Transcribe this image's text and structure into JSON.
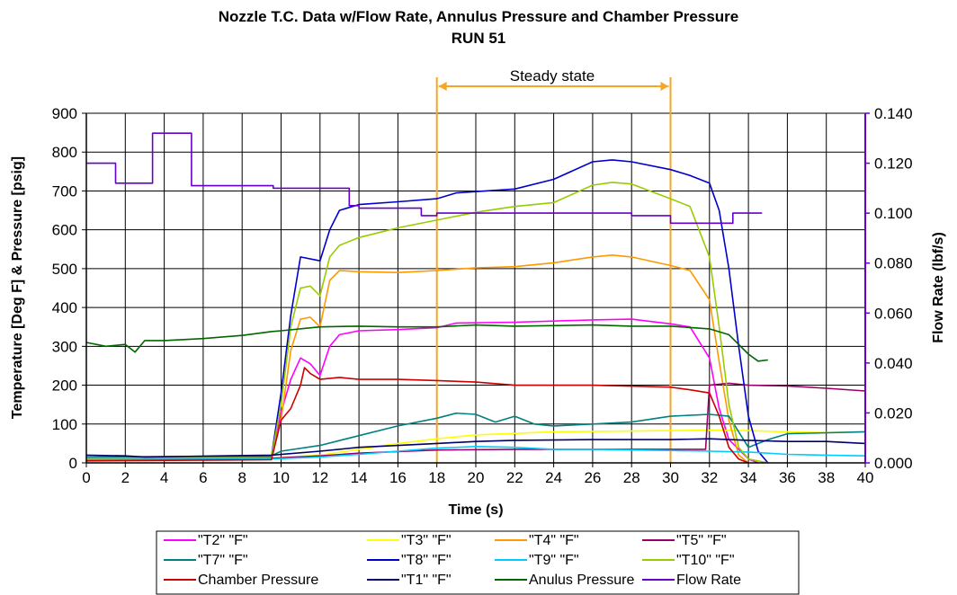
{
  "chart_data": {
    "type": "line",
    "title": "Nozzle T.C. Data w/Flow Rate, Annulus Pressure and Chamber Pressure",
    "subtitle": "RUN 51",
    "xlabel": "Time (s)",
    "ylabel": "Temperature [Deg F] & Pressure [psig]",
    "y2label": "Flow Rate (lbf/s)",
    "xlim": [
      0,
      40
    ],
    "ylim": [
      0,
      900
    ],
    "y2lim": [
      0,
      0.14
    ],
    "xticks": [
      "0",
      "2",
      "4",
      "6",
      "8",
      "10",
      "12",
      "14",
      "16",
      "18",
      "20",
      "22",
      "24",
      "26",
      "28",
      "30",
      "32",
      "34",
      "36",
      "38",
      "40"
    ],
    "yticks": [
      "0",
      "100",
      "200",
      "300",
      "400",
      "500",
      "600",
      "700",
      "800",
      "900"
    ],
    "y2ticks": [
      "0.000",
      "0.020",
      "0.040",
      "0.060",
      "0.080",
      "0.100",
      "0.120",
      "0.140"
    ],
    "grid": true,
    "legend_position": "bottom",
    "annotation": {
      "label": "Steady state",
      "x_start": 18,
      "x_end": 30,
      "color": "#f5a623"
    },
    "series": [
      {
        "name": "\"T2\"  \"F\"",
        "color": "#ff00ff",
        "axis": "left",
        "points": [
          [
            0,
            10
          ],
          [
            9.5,
            12
          ],
          [
            10,
            130
          ],
          [
            10.5,
            215
          ],
          [
            11,
            270
          ],
          [
            11.5,
            255
          ],
          [
            12,
            225
          ],
          [
            12.5,
            300
          ],
          [
            13,
            330
          ],
          [
            14,
            340
          ],
          [
            16,
            343
          ],
          [
            18,
            348
          ],
          [
            19,
            360
          ],
          [
            22,
            362
          ],
          [
            26,
            368
          ],
          [
            28,
            370
          ],
          [
            30,
            358
          ],
          [
            31,
            350
          ],
          [
            32,
            270
          ],
          [
            32.5,
            140
          ],
          [
            33,
            60
          ],
          [
            34,
            10
          ],
          [
            34.5,
            0
          ]
        ]
      },
      {
        "name": "\"T3\"  \"F\"",
        "color": "#ffff00",
        "axis": "left",
        "points": [
          [
            0,
            10
          ],
          [
            9.5,
            12
          ],
          [
            12,
            20
          ],
          [
            14,
            35
          ],
          [
            16,
            50
          ],
          [
            18,
            62
          ],
          [
            20,
            72
          ],
          [
            22,
            76
          ],
          [
            24,
            80
          ],
          [
            28,
            82
          ],
          [
            30,
            83
          ],
          [
            32,
            84
          ],
          [
            34,
            83
          ],
          [
            36,
            80
          ],
          [
            38,
            78
          ],
          [
            40,
            80
          ]
        ]
      },
      {
        "name": "\"T4\"  \"F\"",
        "color": "#ff9900",
        "axis": "left",
        "points": [
          [
            0,
            12
          ],
          [
            9.5,
            14
          ],
          [
            10,
            110
          ],
          [
            10.5,
            290
          ],
          [
            11,
            370
          ],
          [
            11.5,
            375
          ],
          [
            12,
            350
          ],
          [
            12.5,
            470
          ],
          [
            13,
            495
          ],
          [
            14,
            492
          ],
          [
            16,
            490
          ],
          [
            18,
            495
          ],
          [
            20,
            502
          ],
          [
            22,
            505
          ],
          [
            24,
            515
          ],
          [
            26,
            530
          ],
          [
            27,
            535
          ],
          [
            28,
            530
          ],
          [
            30,
            508
          ],
          [
            31,
            495
          ],
          [
            32,
            420
          ],
          [
            32.5,
            260
          ],
          [
            33,
            110
          ],
          [
            33.5,
            20
          ],
          [
            34,
            0
          ]
        ]
      },
      {
        "name": "\"T5\"  \"F\"",
        "color": "#990066",
        "axis": "left",
        "points": [
          [
            0,
            10
          ],
          [
            9.5,
            12
          ],
          [
            12,
            18
          ],
          [
            14,
            25
          ],
          [
            18,
            33
          ],
          [
            22,
            35
          ],
          [
            26,
            35
          ],
          [
            30,
            35
          ],
          [
            31.8,
            35
          ],
          [
            32,
            200
          ],
          [
            33,
            205
          ],
          [
            34,
            200
          ],
          [
            36,
            198
          ],
          [
            38,
            192
          ],
          [
            40,
            185
          ]
        ]
      },
      {
        "name": "\"T7\"  \"F\"",
        "color": "#008080",
        "axis": "left",
        "points": [
          [
            0,
            15
          ],
          [
            9.5,
            18
          ],
          [
            10,
            30
          ],
          [
            12,
            45
          ],
          [
            14,
            70
          ],
          [
            16,
            95
          ],
          [
            18,
            115
          ],
          [
            19,
            128
          ],
          [
            20,
            125
          ],
          [
            21,
            105
          ],
          [
            22,
            120
          ],
          [
            23,
            100
          ],
          [
            24,
            95
          ],
          [
            26,
            100
          ],
          [
            28,
            105
          ],
          [
            30,
            120
          ],
          [
            32,
            125
          ],
          [
            33,
            120
          ],
          [
            34,
            40
          ],
          [
            35,
            60
          ],
          [
            36,
            75
          ],
          [
            40,
            80
          ]
        ]
      },
      {
        "name": "\"T8\"  \"F\"",
        "color": "#0000cc",
        "axis": "left",
        "points": [
          [
            0,
            12
          ],
          [
            9.5,
            15
          ],
          [
            10,
            180
          ],
          [
            10.5,
            380
          ],
          [
            11,
            530
          ],
          [
            12,
            520
          ],
          [
            12.5,
            600
          ],
          [
            13,
            650
          ],
          [
            14,
            665
          ],
          [
            16,
            672
          ],
          [
            18,
            680
          ],
          [
            19,
            695
          ],
          [
            22,
            705
          ],
          [
            24,
            730
          ],
          [
            26,
            775
          ],
          [
            27,
            780
          ],
          [
            28,
            775
          ],
          [
            30,
            755
          ],
          [
            31,
            740
          ],
          [
            32,
            720
          ],
          [
            32.5,
            650
          ],
          [
            33,
            500
          ],
          [
            33.5,
            300
          ],
          [
            34,
            120
          ],
          [
            34.5,
            30
          ],
          [
            35,
            0
          ]
        ]
      },
      {
        "name": "\"T9\"  \"F\"",
        "color": "#00ccff",
        "axis": "left",
        "points": [
          [
            0,
            8
          ],
          [
            9.5,
            10
          ],
          [
            12,
            15
          ],
          [
            14,
            22
          ],
          [
            16,
            30
          ],
          [
            18,
            38
          ],
          [
            20,
            42
          ],
          [
            22,
            40
          ],
          [
            24,
            35
          ],
          [
            26,
            35
          ],
          [
            28,
            33
          ],
          [
            30,
            32
          ],
          [
            32,
            30
          ],
          [
            34,
            28
          ],
          [
            36,
            22
          ],
          [
            38,
            20
          ],
          [
            40,
            18
          ]
        ]
      },
      {
        "name": "\"T10\"  \"F\"",
        "color": "#99cc00",
        "axis": "left",
        "points": [
          [
            0,
            12
          ],
          [
            9.5,
            14
          ],
          [
            10,
            150
          ],
          [
            10.5,
            350
          ],
          [
            11,
            450
          ],
          [
            11.5,
            455
          ],
          [
            12,
            430
          ],
          [
            12.5,
            530
          ],
          [
            13,
            560
          ],
          [
            14,
            580
          ],
          [
            16,
            605
          ],
          [
            18,
            625
          ],
          [
            20,
            645
          ],
          [
            22,
            660
          ],
          [
            24,
            670
          ],
          [
            26,
            715
          ],
          [
            27,
            722
          ],
          [
            28,
            718
          ],
          [
            30,
            680
          ],
          [
            31,
            660
          ],
          [
            32,
            530
          ],
          [
            32.5,
            350
          ],
          [
            33,
            150
          ],
          [
            33.5,
            40
          ],
          [
            34,
            10
          ],
          [
            35,
            0
          ]
        ]
      },
      {
        "name": "Chamber Pressure",
        "color": "#cc0000",
        "axis": "left",
        "points": [
          [
            0,
            5
          ],
          [
            9.5,
            8
          ],
          [
            10,
            110
          ],
          [
            10.5,
            140
          ],
          [
            11,
            200
          ],
          [
            11.2,
            245
          ],
          [
            11.5,
            230
          ],
          [
            12,
            215
          ],
          [
            13,
            220
          ],
          [
            14,
            215
          ],
          [
            16,
            215
          ],
          [
            18,
            212
          ],
          [
            20,
            208
          ],
          [
            22,
            200
          ],
          [
            26,
            200
          ],
          [
            30,
            195
          ],
          [
            31,
            188
          ],
          [
            32,
            180
          ],
          [
            32.5,
            120
          ],
          [
            33,
            40
          ],
          [
            33.5,
            10
          ],
          [
            34,
            0
          ]
        ]
      },
      {
        "name": "\"T1\" \"F\"",
        "color": "#000066",
        "axis": "left",
        "points": [
          [
            0,
            20
          ],
          [
            2,
            18
          ],
          [
            3,
            15
          ],
          [
            9.5,
            20
          ],
          [
            12,
            30
          ],
          [
            14,
            40
          ],
          [
            16,
            45
          ],
          [
            18,
            50
          ],
          [
            20,
            55
          ],
          [
            22,
            58
          ],
          [
            26,
            60
          ],
          [
            30,
            60
          ],
          [
            32,
            62
          ],
          [
            34,
            58
          ],
          [
            36,
            55
          ],
          [
            38,
            55
          ],
          [
            40,
            50
          ]
        ]
      },
      {
        "name": "Anulus Pressure",
        "color": "#006600",
        "axis": "left",
        "points": [
          [
            0,
            310
          ],
          [
            1,
            300
          ],
          [
            2,
            305
          ],
          [
            2.5,
            285
          ],
          [
            3,
            315
          ],
          [
            4,
            315
          ],
          [
            6,
            320
          ],
          [
            8,
            328
          ],
          [
            9.5,
            338
          ],
          [
            10,
            340
          ],
          [
            12,
            350
          ],
          [
            14,
            352
          ],
          [
            16,
            350
          ],
          [
            18,
            350
          ],
          [
            20,
            355
          ],
          [
            22,
            352
          ],
          [
            26,
            355
          ],
          [
            28,
            352
          ],
          [
            30,
            352
          ],
          [
            32,
            345
          ],
          [
            33,
            330
          ],
          [
            34,
            280
          ],
          [
            34.5,
            262
          ],
          [
            35,
            265
          ]
        ]
      },
      {
        "name": "Flow Rate",
        "color": "#6600cc",
        "axis": "right",
        "step": true,
        "points": [
          [
            0,
            0.12
          ],
          [
            1.5,
            0.12
          ],
          [
            1.5,
            0.112
          ],
          [
            3.4,
            0.112
          ],
          [
            3.4,
            0.132
          ],
          [
            5.4,
            0.132
          ],
          [
            5.4,
            0.111
          ],
          [
            9.6,
            0.111
          ],
          [
            9.6,
            0.11
          ],
          [
            13.5,
            0.11
          ],
          [
            13.5,
            0.103
          ],
          [
            14,
            0.103
          ],
          [
            14,
            0.102
          ],
          [
            17.2,
            0.102
          ],
          [
            17.2,
            0.099
          ],
          [
            18,
            0.099
          ],
          [
            18,
            0.1
          ],
          [
            28,
            0.1
          ],
          [
            28,
            0.099
          ],
          [
            30,
            0.099
          ],
          [
            30,
            0.096
          ],
          [
            33.2,
            0.096
          ],
          [
            33.2,
            0.1
          ],
          [
            34.7,
            0.1
          ]
        ]
      }
    ]
  }
}
